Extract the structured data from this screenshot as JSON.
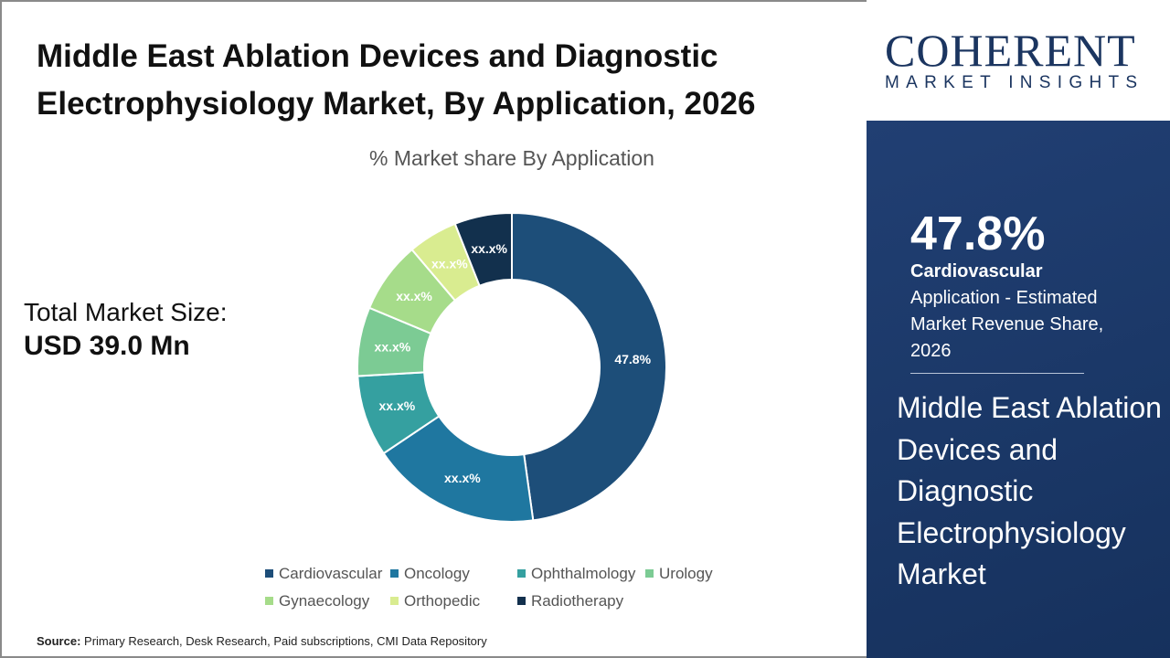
{
  "title": "Middle East Ablation Devices and Diagnostic Electrophysiology Market, By Application, 2026",
  "total_market": {
    "label": "Total Market Size:",
    "value": "USD 39.0 Mn"
  },
  "source": {
    "label": "Source:",
    "text": "Primary Research, Desk Research, Paid subscriptions, CMI Data Repository"
  },
  "logo": {
    "name": "COHERENT",
    "tagline": "MARKET INSIGHTS"
  },
  "side_panel": {
    "percent": "47.8%",
    "category": "Cardiovascular",
    "description": "Application - Estimated Market Revenue Share, 2026",
    "market_name": "Middle East Ablation Devices and Diagnostic Electrophysiology Market"
  },
  "chart_data": {
    "type": "pie",
    "donut": true,
    "title": "% Market share By Application",
    "categories": [
      "Cardiovascular",
      "Oncology",
      "Ophthalmology",
      "Urology",
      "Gynaecology",
      "Orthopedic",
      "Radiotherapy"
    ],
    "values": [
      47.8,
      17.8,
      8.5,
      7.2,
      7.5,
      5.2,
      6.0
    ],
    "data_labels": [
      "47.8%",
      "xx.x%",
      "xx.x%",
      "xx.x%",
      "xx.x%",
      "xx.x%",
      "xx.x%"
    ],
    "colors": [
      "#1d4e79",
      "#1f77a0",
      "#35a0a0",
      "#7ccb94",
      "#a6dc8a",
      "#d9ec90",
      "#12304d"
    ],
    "legend_position": "bottom"
  }
}
